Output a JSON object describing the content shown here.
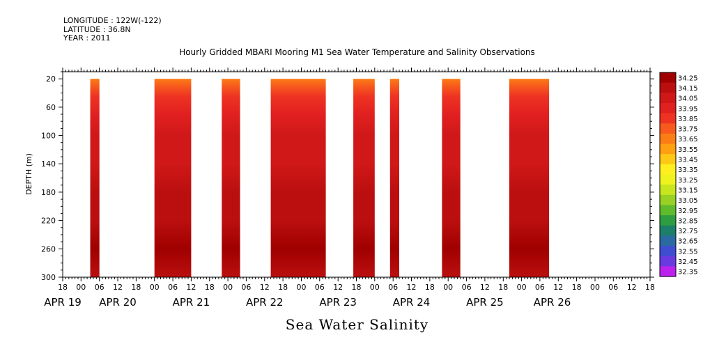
{
  "header": {
    "longitude": "LONGITUDE : 122W(-122)",
    "latitude": "LATITUDE : 36.8N",
    "year": "YEAR : 2011"
  },
  "chart_data": {
    "type": "heatmap",
    "title": "Hourly Gridded MBARI Mooring M1 Sea Water Temperature and Salinity Observations",
    "subtitle": "Sea Water Salinity",
    "ylabel": "DEPTH (m)",
    "xlabel": "",
    "y_axis": {
      "range": [
        10,
        300
      ],
      "inverted": true,
      "ticks": [
        20,
        60,
        100,
        140,
        180,
        220,
        260,
        300
      ]
    },
    "x_axis": {
      "range_hours": [
        -6,
        186
      ],
      "hour_tick_labels": [
        "18",
        "00",
        "06",
        "12",
        "18",
        "00",
        "06",
        "12",
        "18",
        "00",
        "06",
        "12",
        "18",
        "00",
        "06",
        "12",
        "18",
        "00",
        "06",
        "12",
        "18",
        "00",
        "06",
        "12",
        "18",
        "00",
        "06",
        "12",
        "18",
        "00",
        "06",
        "12",
        "18"
      ],
      "date_labels": [
        {
          "label": "APR 19",
          "hour": -6
        },
        {
          "label": "APR 20",
          "hour": 12
        },
        {
          "label": "APR 21",
          "hour": 36
        },
        {
          "label": "APR 22",
          "hour": 60
        },
        {
          "label": "APR 23",
          "hour": 84
        },
        {
          "label": "APR 24",
          "hour": 108
        },
        {
          "label": "APR 25",
          "hour": 132
        },
        {
          "label": "APR 26",
          "hour": 154
        }
      ]
    },
    "data_segments": [
      {
        "start": "APR 20 03:00",
        "end": "APR 20 06:00",
        "start_hour": 3,
        "end_hour": 6
      },
      {
        "start": "APR 21 00:00",
        "end": "APR 21 12:00",
        "start_hour": 24,
        "end_hour": 36
      },
      {
        "start": "APR 21 22:00",
        "end": "APR 22 04:00",
        "start_hour": 46,
        "end_hour": 52
      },
      {
        "start": "APR 22 14:00",
        "end": "APR 23 08:00",
        "start_hour": 62,
        "end_hour": 80
      },
      {
        "start": "APR 23 17:00",
        "end": "APR 24 00:00",
        "start_hour": 89,
        "end_hour": 96
      },
      {
        "start": "APR 24 05:00",
        "end": "APR 24 08:00",
        "start_hour": 101,
        "end_hour": 104
      },
      {
        "start": "APR 24 22:00",
        "end": "APR 25 04:00",
        "start_hour": 118,
        "end_hour": 124
      },
      {
        "start": "APR 25 20:00",
        "end": "APR 26 09:00",
        "start_hour": 140,
        "end_hour": 153
      }
    ],
    "salinity_profile": [
      {
        "depth": 20,
        "value": 33.6
      },
      {
        "depth": 30,
        "value": 33.78
      },
      {
        "depth": 45,
        "value": 33.9
      },
      {
        "depth": 70,
        "value": 33.98
      },
      {
        "depth": 100,
        "value": 34.02
      },
      {
        "depth": 140,
        "value": 34.07
      },
      {
        "depth": 180,
        "value": 34.1
      },
      {
        "depth": 220,
        "value": 34.14
      },
      {
        "depth": 260,
        "value": 34.2
      },
      {
        "depth": 300,
        "value": 34.18
      }
    ],
    "colorbar": {
      "labels": [
        "34.25",
        "34.15",
        "34.05",
        "33.95",
        "33.85",
        "33.75",
        "33.65",
        "33.55",
        "33.45",
        "33.35",
        "33.25",
        "33.15",
        "33.05",
        "32.95",
        "32.85",
        "32.75",
        "32.65",
        "32.55",
        "32.45",
        "32.35"
      ],
      "colors": [
        "#a00000",
        "#bb0f0f",
        "#d01818",
        "#e12020",
        "#ee3322",
        "#f75a1c",
        "#fb7d16",
        "#ffa012",
        "#ffc815",
        "#ffee20",
        "#eef21e",
        "#c7e61e",
        "#98d024",
        "#5fba2c",
        "#2e9c40",
        "#1d7f6a",
        "#2a6aa0",
        "#3f4ed0",
        "#6a3ae0",
        "#bb22ee"
      ]
    }
  }
}
